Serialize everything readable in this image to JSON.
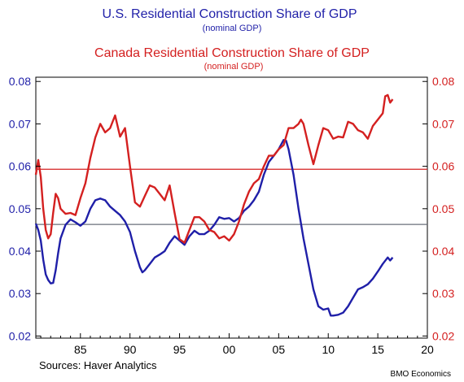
{
  "colors": {
    "us": "#1f1fa8",
    "canada": "#d42020",
    "avg_line_us": "#6a6f7a",
    "avg_line_canada": "#d42020",
    "axis": "#000000",
    "frame": "#000000"
  },
  "chart_data": {
    "type": "line",
    "titles": [
      {
        "text": "U.S. Residential Construction Share of GDP",
        "sub": "(nominal GDP)",
        "color": "#1f1fa8"
      },
      {
        "text": "Canada Residential Construction Share of GDP",
        "sub": "(nominal GDP)",
        "color": "#d42020"
      }
    ],
    "xlim": [
      1980.5,
      2020
    ],
    "ylim": [
      0.0195,
      0.081
    ],
    "x_ticks": [
      1985,
      1990,
      1995,
      2000,
      2005,
      2010,
      2015,
      2020
    ],
    "x_tick_labels": [
      "85",
      "90",
      "95",
      "00",
      "05",
      "10",
      "15",
      "20"
    ],
    "y_ticks": [
      0.02,
      0.03,
      0.04,
      0.05,
      0.06,
      0.07,
      0.08
    ],
    "y_tick_labels_left": [
      "0.02",
      "0.03",
      "0.04",
      "0.05",
      "0.06",
      "0.07",
      "0.08"
    ],
    "y_tick_labels_right": [
      "0.02",
      "0.03",
      "0.04",
      "0.05",
      "0.06",
      "0.07",
      "0.08"
    ],
    "grid": false,
    "reference_lines": [
      {
        "series": "us",
        "y": 0.0463
      },
      {
        "series": "canada",
        "y": 0.0593
      }
    ],
    "series": [
      {
        "key": "us",
        "points": [
          [
            1980.5,
            0.0465
          ],
          [
            1980.75,
            0.045
          ],
          [
            1981,
            0.0425
          ],
          [
            1981.25,
            0.038
          ],
          [
            1981.5,
            0.0345
          ],
          [
            1981.75,
            0.0332
          ],
          [
            1982,
            0.0324
          ],
          [
            1982.25,
            0.0325
          ],
          [
            1982.5,
            0.0355
          ],
          [
            1982.75,
            0.0395
          ],
          [
            1983,
            0.043
          ],
          [
            1983.5,
            0.0462
          ],
          [
            1984,
            0.0475
          ],
          [
            1984.5,
            0.0468
          ],
          [
            1985,
            0.046
          ],
          [
            1985.5,
            0.047
          ],
          [
            1986,
            0.05
          ],
          [
            1986.5,
            0.052
          ],
          [
            1987,
            0.0524
          ],
          [
            1987.5,
            0.052
          ],
          [
            1988,
            0.0505
          ],
          [
            1988.5,
            0.0495
          ],
          [
            1989,
            0.0485
          ],
          [
            1989.5,
            0.047
          ],
          [
            1990,
            0.0445
          ],
          [
            1990.5,
            0.04
          ],
          [
            1991,
            0.0362
          ],
          [
            1991.25,
            0.035
          ],
          [
            1991.5,
            0.0355
          ],
          [
            1992,
            0.037
          ],
          [
            1992.5,
            0.0385
          ],
          [
            1993,
            0.0392
          ],
          [
            1993.5,
            0.04
          ],
          [
            1994,
            0.042
          ],
          [
            1994.5,
            0.0435
          ],
          [
            1995,
            0.0425
          ],
          [
            1995.5,
            0.0415
          ],
          [
            1996,
            0.0435
          ],
          [
            1996.5,
            0.0448
          ],
          [
            1997,
            0.044
          ],
          [
            1997.5,
            0.044
          ],
          [
            1998,
            0.0448
          ],
          [
            1998.5,
            0.0462
          ],
          [
            1999,
            0.048
          ],
          [
            1999.5,
            0.0476
          ],
          [
            2000,
            0.0478
          ],
          [
            2000.5,
            0.047
          ],
          [
            2001,
            0.0478
          ],
          [
            2001.5,
            0.0495
          ],
          [
            2002,
            0.0505
          ],
          [
            2002.5,
            0.052
          ],
          [
            2003,
            0.054
          ],
          [
            2003.5,
            0.058
          ],
          [
            2004,
            0.061
          ],
          [
            2004.5,
            0.0625
          ],
          [
            2005,
            0.064
          ],
          [
            2005.5,
            0.0662
          ],
          [
            2005.75,
            0.066
          ],
          [
            2006,
            0.064
          ],
          [
            2006.5,
            0.058
          ],
          [
            2007,
            0.05
          ],
          [
            2007.5,
            0.043
          ],
          [
            2008,
            0.037
          ],
          [
            2008.5,
            0.031
          ],
          [
            2009,
            0.027
          ],
          [
            2009.5,
            0.0262
          ],
          [
            2010,
            0.0265
          ],
          [
            2010.25,
            0.0248
          ],
          [
            2010.5,
            0.0248
          ],
          [
            2011,
            0.025
          ],
          [
            2011.5,
            0.0255
          ],
          [
            2012,
            0.027
          ],
          [
            2012.5,
            0.029
          ],
          [
            2013,
            0.031
          ],
          [
            2013.5,
            0.0315
          ],
          [
            2014,
            0.0322
          ],
          [
            2014.5,
            0.0335
          ],
          [
            2015,
            0.0352
          ],
          [
            2015.5,
            0.037
          ],
          [
            2016,
            0.0385
          ],
          [
            2016.25,
            0.0378
          ],
          [
            2016.5,
            0.0385
          ]
        ]
      },
      {
        "key": "canada",
        "points": [
          [
            1980.5,
            0.058
          ],
          [
            1980.75,
            0.0615
          ],
          [
            1981,
            0.0575
          ],
          [
            1981.25,
            0.05
          ],
          [
            1981.5,
            0.045
          ],
          [
            1981.75,
            0.043
          ],
          [
            1982,
            0.044
          ],
          [
            1982.25,
            0.049
          ],
          [
            1982.5,
            0.0535
          ],
          [
            1982.75,
            0.0525
          ],
          [
            1983,
            0.05
          ],
          [
            1983.5,
            0.0488
          ],
          [
            1984,
            0.049
          ],
          [
            1984.5,
            0.0485
          ],
          [
            1985,
            0.0525
          ],
          [
            1985.5,
            0.056
          ],
          [
            1986,
            0.062
          ],
          [
            1986.5,
            0.0668
          ],
          [
            1987,
            0.07
          ],
          [
            1987.5,
            0.068
          ],
          [
            1988,
            0.069
          ],
          [
            1988.5,
            0.072
          ],
          [
            1989,
            0.067
          ],
          [
            1989.5,
            0.069
          ],
          [
            1990,
            0.06
          ],
          [
            1990.5,
            0.0515
          ],
          [
            1991,
            0.0505
          ],
          [
            1991.5,
            0.053
          ],
          [
            1992,
            0.0555
          ],
          [
            1992.5,
            0.055
          ],
          [
            1993,
            0.0535
          ],
          [
            1993.5,
            0.052
          ],
          [
            1994,
            0.0555
          ],
          [
            1994.5,
            0.049
          ],
          [
            1995,
            0.0428
          ],
          [
            1995.5,
            0.042
          ],
          [
            1996,
            0.045
          ],
          [
            1996.5,
            0.048
          ],
          [
            1997,
            0.048
          ],
          [
            1997.5,
            0.047
          ],
          [
            1998,
            0.045
          ],
          [
            1998.5,
            0.0445
          ],
          [
            1999,
            0.043
          ],
          [
            1999.5,
            0.0435
          ],
          [
            2000,
            0.0425
          ],
          [
            2000.5,
            0.044
          ],
          [
            2001,
            0.047
          ],
          [
            2001.5,
            0.051
          ],
          [
            2002,
            0.054
          ],
          [
            2002.5,
            0.056
          ],
          [
            2003,
            0.057
          ],
          [
            2003.5,
            0.06
          ],
          [
            2004,
            0.0625
          ],
          [
            2004.5,
            0.0625
          ],
          [
            2005,
            0.064
          ],
          [
            2005.5,
            0.065
          ],
          [
            2006,
            0.069
          ],
          [
            2006.5,
            0.069
          ],
          [
            2007,
            0.07
          ],
          [
            2007.25,
            0.071
          ],
          [
            2007.5,
            0.07
          ],
          [
            2008,
            0.065
          ],
          [
            2008.5,
            0.0605
          ],
          [
            2009,
            0.065
          ],
          [
            2009.5,
            0.069
          ],
          [
            2010,
            0.0685
          ],
          [
            2010.5,
            0.0665
          ],
          [
            2011,
            0.067
          ],
          [
            2011.5,
            0.0668
          ],
          [
            2012,
            0.0705
          ],
          [
            2012.5,
            0.07
          ],
          [
            2013,
            0.0685
          ],
          [
            2013.5,
            0.068
          ],
          [
            2014,
            0.0665
          ],
          [
            2014.5,
            0.0695
          ],
          [
            2015,
            0.071
          ],
          [
            2015.5,
            0.0725
          ],
          [
            2015.75,
            0.0765
          ],
          [
            2016,
            0.0768
          ],
          [
            2016.25,
            0.075
          ],
          [
            2016.5,
            0.0758
          ]
        ]
      }
    ]
  },
  "footer": {
    "sources": "Sources:   Haver Analytics",
    "credit": "BMO Economics"
  }
}
